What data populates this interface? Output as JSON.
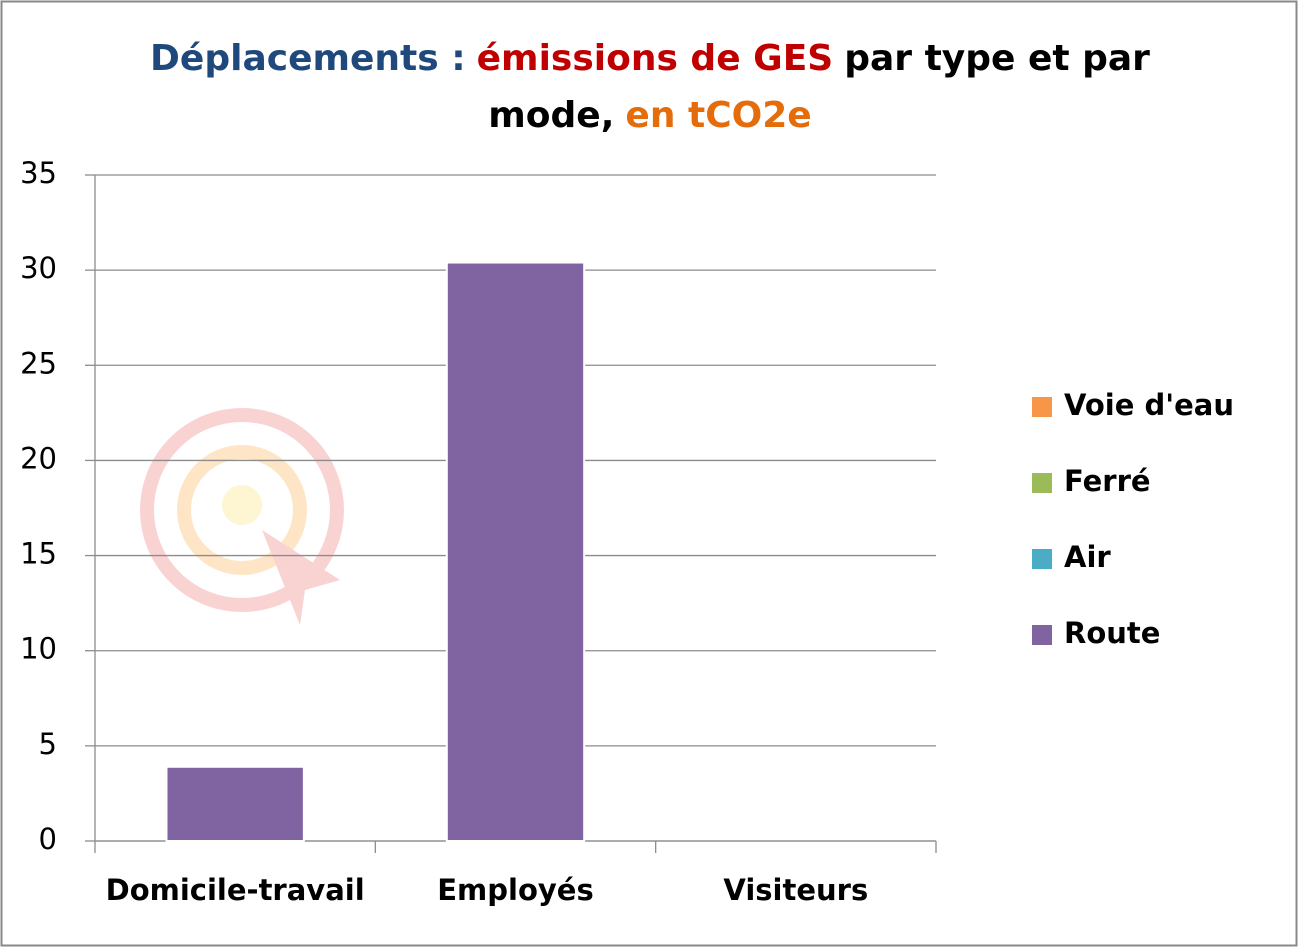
{
  "chart_data": {
    "type": "stacked_bar",
    "title": [
      [
        {
          "text": "Déplacements :",
          "color": "#1f497d"
        },
        {
          "text": "émissions de GES",
          "color": "#c00000"
        },
        {
          "text": "par type et par",
          "color": "#000000"
        }
      ],
      [
        {
          "text": "mode,",
          "color": "#000000"
        },
        {
          "text": "en tCO2e",
          "color": "#e46c0a"
        }
      ]
    ],
    "categories": [
      "Domicile-travail",
      "Employés",
      "Visiteurs"
    ],
    "series": [
      {
        "name": "Voie d'eau",
        "color": "#f79646",
        "values": [
          0,
          0,
          0
        ]
      },
      {
        "name": "Ferré",
        "color": "#9bbb59",
        "values": [
          0,
          0,
          0
        ]
      },
      {
        "name": "Air",
        "color": "#4bacc6",
        "values": [
          0,
          0,
          0
        ]
      },
      {
        "name": "Route",
        "color": "#8064a2",
        "values": [
          3.9,
          30.4,
          0
        ]
      }
    ],
    "ylim": [
      0,
      35
    ],
    "yticks": [
      0,
      5,
      10,
      15,
      20,
      25,
      30,
      35
    ],
    "grid": true,
    "legend": "right"
  }
}
